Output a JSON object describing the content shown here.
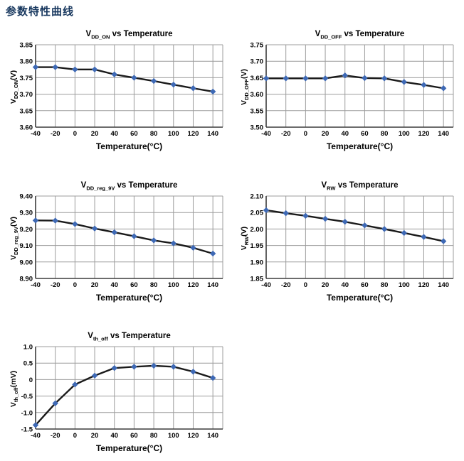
{
  "page": {
    "title": "参数特性曲线"
  },
  "colors": {
    "page_title": "#17375E",
    "marker": "#3E69B5",
    "line": "#1A1A1A",
    "grid": "#9C9C9C",
    "axis": "#3B3B3B",
    "text": "#000000",
    "background": "#FFFFFF"
  },
  "chart_data": [
    {
      "type": "line",
      "title": {
        "sym": "V",
        "sub": "DD_ON",
        "rest": " vs Temperature"
      },
      "ylabel": {
        "sym": "V",
        "sub": "DD_ON",
        "rest": "(V)"
      },
      "xlabel": "Temperature(°C)",
      "x": [
        -40,
        -20,
        0,
        20,
        40,
        60,
        80,
        100,
        120,
        140
      ],
      "values": [
        3.782,
        3.782,
        3.775,
        3.775,
        3.76,
        3.75,
        3.74,
        3.729,
        3.718,
        3.708
      ],
      "xlim": [
        -40,
        150
      ],
      "ylim": [
        3.6,
        3.85
      ],
      "xtick_labels": [
        "-40",
        "-20",
        "0",
        "20",
        "40",
        "60",
        "80",
        "100",
        "120",
        "140"
      ],
      "yticks": [
        3.85,
        3.8,
        3.75,
        3.7,
        3.65,
        3.6
      ],
      "ytick_labels": [
        "3.85",
        "3.80",
        "3.75",
        "3.70",
        "3.65",
        "3.60"
      ],
      "grid": true,
      "legend": "none"
    },
    {
      "type": "line",
      "title": {
        "sym": "V",
        "sub": "DD_OFF",
        "rest": " vs Temperature"
      },
      "ylabel": {
        "sym": "V",
        "sub": "DD_OFF",
        "rest": "(V)"
      },
      "xlabel": "Temperature(°C)",
      "x": [
        -40,
        -20,
        0,
        20,
        40,
        60,
        80,
        100,
        120,
        140
      ],
      "values": [
        3.648,
        3.648,
        3.648,
        3.648,
        3.657,
        3.649,
        3.648,
        3.637,
        3.628,
        3.618
      ],
      "xlim": [
        -40,
        150
      ],
      "ylim": [
        3.5,
        3.75
      ],
      "xtick_labels": [
        "-40",
        "-20",
        "0",
        "20",
        "40",
        "60",
        "80",
        "100",
        "120",
        "140"
      ],
      "yticks": [
        3.75,
        3.7,
        3.65,
        3.6,
        3.55,
        3.5
      ],
      "ytick_labels": [
        "3.75",
        "3.70",
        "3.65",
        "3.60",
        "3.55",
        "3.50"
      ],
      "grid": true,
      "legend": "none"
    },
    {
      "type": "line",
      "title": {
        "sym": "V",
        "sub": "DD_reg_9V",
        "rest": " vs Temperature"
      },
      "ylabel": {
        "sym": "V",
        "sub": "DD_reg_9V",
        "rest": "(V)"
      },
      "xlabel": "Temperature(°C)",
      "x": [
        -40,
        -20,
        0,
        20,
        40,
        60,
        80,
        100,
        120,
        140
      ],
      "values": [
        9.252,
        9.251,
        9.23,
        9.203,
        9.18,
        9.156,
        9.131,
        9.113,
        9.086,
        9.051
      ],
      "xlim": [
        -40,
        150
      ],
      "ylim": [
        8.9,
        9.4
      ],
      "xtick_labels": [
        "-40",
        "-20",
        "0",
        "20",
        "40",
        "60",
        "80",
        "100",
        "120",
        "140"
      ],
      "yticks": [
        9.4,
        9.3,
        9.2,
        9.1,
        9.0,
        8.9
      ],
      "ytick_labels": [
        "9.40",
        "9.30",
        "9.20",
        "9.10",
        "9.00",
        "8.90"
      ],
      "grid": true,
      "legend": "none"
    },
    {
      "type": "line",
      "title": {
        "sym": "V",
        "sub": "RW",
        "rest": " vs Temperature"
      },
      "ylabel": {
        "sym": "V",
        "sub": "RW",
        "rest": "(V)"
      },
      "xlabel": "Temperature(°C)",
      "x": [
        -40,
        -20,
        0,
        20,
        40,
        60,
        80,
        100,
        120,
        140
      ],
      "values": [
        2.057,
        2.048,
        2.04,
        2.031,
        2.022,
        2.011,
        2.0,
        1.988,
        1.976,
        1.963
      ],
      "xlim": [
        -40,
        150
      ],
      "ylim": [
        1.85,
        2.1
      ],
      "xtick_labels": [
        "-40",
        "-20",
        "0",
        "20",
        "40",
        "60",
        "80",
        "100",
        "120",
        "140"
      ],
      "yticks": [
        2.1,
        2.05,
        2.0,
        1.95,
        1.9,
        1.85
      ],
      "ytick_labels": [
        "2.10",
        "2.05",
        "2.00",
        "1.95",
        "1.90",
        "1.85"
      ],
      "grid": true,
      "legend": "none"
    },
    {
      "type": "line",
      "title": {
        "sym": "V",
        "sub": "th_off",
        "rest": " vs Temperature"
      },
      "ylabel": {
        "sym": "V",
        "sub": "th_off",
        "rest": "(mV)"
      },
      "xlabel": "Temperature(°C)",
      "x": [
        -40,
        -20,
        0,
        20,
        40,
        60,
        80,
        100,
        120,
        140
      ],
      "values": [
        -1.38,
        -0.72,
        -0.15,
        0.12,
        0.35,
        0.39,
        0.42,
        0.39,
        0.24,
        0.05
      ],
      "xlim": [
        -40,
        150
      ],
      "ylim": [
        -1.5,
        1.0
      ],
      "xtick_labels": [
        "-40",
        "-20",
        "0",
        "20",
        "40",
        "60",
        "80",
        "100",
        "120",
        "140"
      ],
      "yticks": [
        1.0,
        0.5,
        0,
        -0.5,
        -1.0,
        -1.5
      ],
      "ytick_labels": [
        "1.0",
        "0.5",
        "0",
        "-0.5",
        "-1.0",
        "-1.5"
      ],
      "grid": true,
      "legend": "none"
    }
  ]
}
